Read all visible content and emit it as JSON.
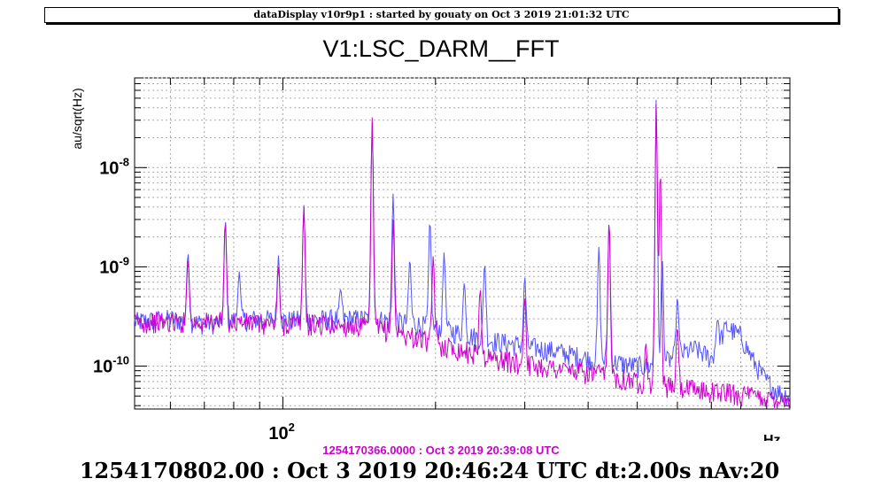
{
  "banner": "dataDisplay v10r9p1 : started by gouaty on Oct  3 2019 21:01:32 UTC",
  "reference_label": "1254170366.0000 : Oct  3 2019 20:39:08 UTC",
  "footer": "1254170802.00 : Oct  3 2019 20:46:24 UTC dt:2.00s nAv:20",
  "chart_data": {
    "type": "line",
    "title": "V1:LSC_DARM__FFT",
    "ylabel": "au/sqrt(Hz)",
    "xunit": "Hz",
    "x_scale": "log",
    "y_scale": "log",
    "xlim": [
      51,
      1000
    ],
    "ylim": [
      3.7e-11,
      8e-08
    ],
    "grid": true,
    "y_ticks": [
      {
        "value": 1e-08,
        "base": "10",
        "exp": "-8"
      },
      {
        "value": 1e-09,
        "base": "10",
        "exp": "-9"
      },
      {
        "value": 1e-10,
        "base": "10",
        "exp": "-10"
      }
    ],
    "x_ticks": [
      {
        "value": 100,
        "base": "10",
        "exp": "2"
      }
    ],
    "series": [
      {
        "color": "#5555ff",
        "baseline": [
          [
            51,
            2.8e-10
          ],
          [
            60,
            3e-10
          ],
          [
            70,
            2.7e-10
          ],
          [
            80,
            2.9e-10
          ],
          [
            90,
            3e-10
          ],
          [
            100,
            2.9e-10
          ],
          [
            130,
            3e-10
          ],
          [
            150,
            3e-10
          ],
          [
            180,
            2.7e-10
          ],
          [
            220,
            2.2e-10
          ],
          [
            260,
            1.8e-10
          ],
          [
            300,
            1.6e-10
          ],
          [
            350,
            1.4e-10
          ],
          [
            400,
            1.2e-10
          ],
          [
            450,
            1.1e-10
          ],
          [
            500,
            1e-10
          ],
          [
            550,
            1e-10
          ],
          [
            600,
            1.3e-10
          ],
          [
            650,
            1.5e-10
          ],
          [
            700,
            1.2e-10
          ],
          [
            750,
            2.5e-10
          ],
          [
            800,
            2e-10
          ],
          [
            850,
            1.1e-10
          ],
          [
            900,
            7e-11
          ],
          [
            950,
            5.5e-11
          ],
          [
            1000,
            5e-11
          ]
        ],
        "peaks": [
          [
            65,
            1.4e-09
          ],
          [
            77,
            3e-09
          ],
          [
            82,
            9e-10
          ],
          [
            98,
            1.3e-09
          ],
          [
            110,
            4.2e-09
          ],
          [
            130,
            6e-10
          ],
          [
            150,
            2.8e-08
          ],
          [
            165,
            5.5e-09
          ],
          [
            178,
            1.2e-09
          ],
          [
            195,
            3e-09
          ],
          [
            208,
            1.4e-09
          ],
          [
            228,
            7e-10
          ],
          [
            250,
            1.1e-09
          ],
          [
            300,
            8e-10
          ],
          [
            420,
            1.6e-09
          ],
          [
            440,
            3e-09
          ],
          [
            545,
            5e-08
          ],
          [
            560,
            1.2e-09
          ],
          [
            600,
            5e-10
          ],
          [
            720,
            3e-10
          ]
        ]
      },
      {
        "color": "#cc00cc",
        "baseline": [
          [
            51,
            2.8e-10
          ],
          [
            60,
            2.8e-10
          ],
          [
            70,
            2.8e-10
          ],
          [
            80,
            2.8e-10
          ],
          [
            90,
            2.7e-10
          ],
          [
            100,
            2.7e-10
          ],
          [
            130,
            2.6e-10
          ],
          [
            150,
            2.5e-10
          ],
          [
            180,
            2e-10
          ],
          [
            220,
            1.5e-10
          ],
          [
            260,
            1.2e-10
          ],
          [
            300,
            1.05e-10
          ],
          [
            350,
            9.5e-11
          ],
          [
            400,
            8.5e-11
          ],
          [
            450,
            8e-11
          ],
          [
            500,
            7e-11
          ],
          [
            550,
            6.5e-11
          ],
          [
            600,
            6e-11
          ],
          [
            650,
            5.8e-11
          ],
          [
            700,
            5.6e-11
          ],
          [
            750,
            5.5e-11
          ],
          [
            800,
            5.2e-11
          ],
          [
            850,
            5e-11
          ],
          [
            900,
            4.8e-11
          ],
          [
            950,
            4.7e-11
          ],
          [
            1000,
            4.6e-11
          ]
        ],
        "peaks": [
          [
            65,
            1.2e-09
          ],
          [
            77,
            2.8e-09
          ],
          [
            98,
            1e-09
          ],
          [
            110,
            4e-09
          ],
          [
            150,
            3.2e-08
          ],
          [
            165,
            3e-09
          ],
          [
            198,
            1.3e-09
          ],
          [
            245,
            6e-10
          ],
          [
            300,
            5e-10
          ],
          [
            440,
            3e-09
          ],
          [
            520,
            1.7e-10
          ],
          [
            545,
            4.5e-08
          ],
          [
            555,
            1e-08
          ],
          [
            600,
            2.5e-10
          ]
        ]
      }
    ]
  }
}
